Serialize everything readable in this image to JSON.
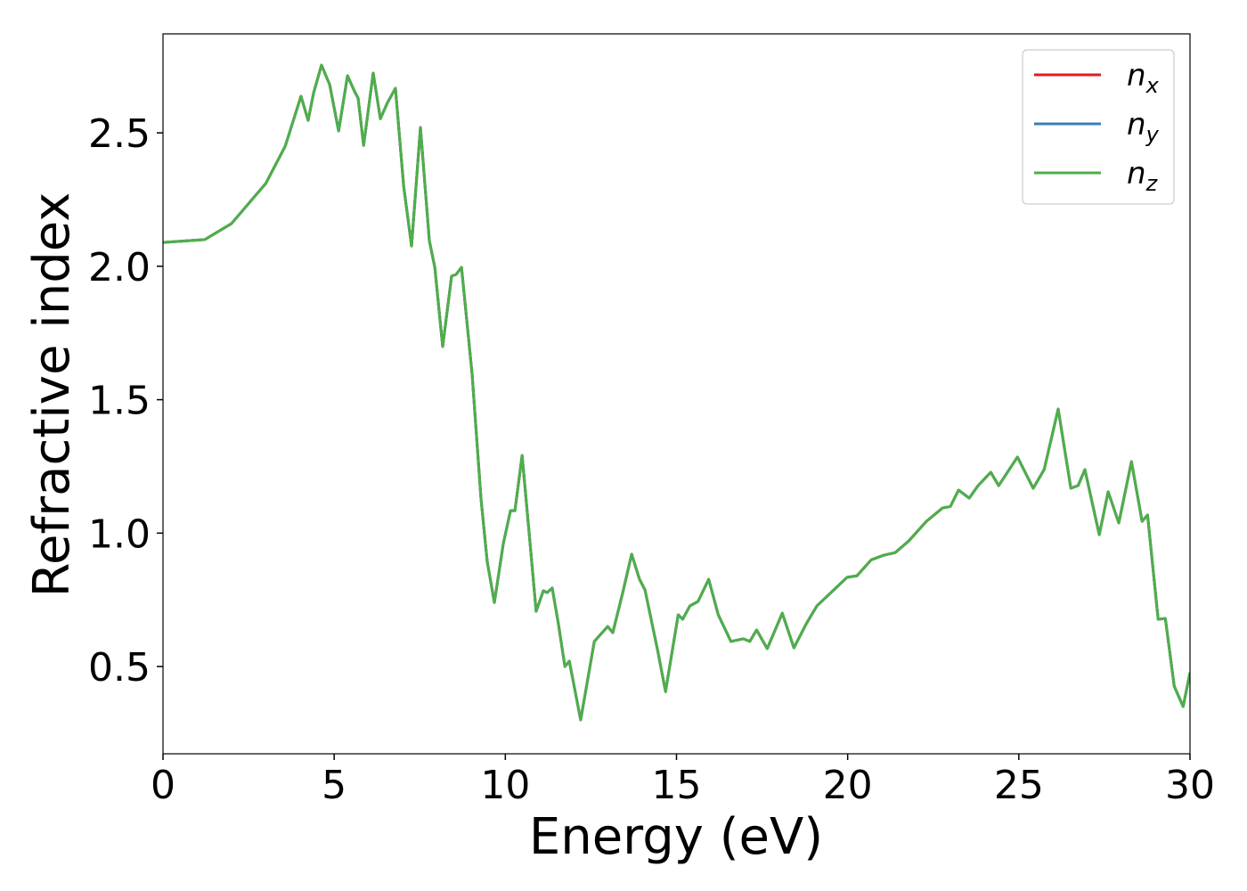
{
  "chart_data": {
    "type": "line",
    "xlabel": "Energy (eV)",
    "ylabel": "Refractive index",
    "x": [
      0,
      1.22,
      2.0,
      3.0,
      3.57,
      4.03,
      4.24,
      4.4,
      4.63,
      4.87,
      5.13,
      5.39,
      5.6,
      5.7,
      5.86,
      6.14,
      6.35,
      6.56,
      6.79,
      7.03,
      7.26,
      7.52,
      7.78,
      7.94,
      8.17,
      8.43,
      8.56,
      8.72,
      9.03,
      9.29,
      9.47,
      9.68,
      9.94,
      10.15,
      10.28,
      10.49,
      10.7,
      10.9,
      11.11,
      11.22,
      11.37,
      11.55,
      11.74,
      11.87,
      12.2,
      12.6,
      12.99,
      13.14,
      13.43,
      13.69,
      13.92,
      14.08,
      14.45,
      14.68,
      15.05,
      15.18,
      15.39,
      15.63,
      15.94,
      16.22,
      16.59,
      16.95,
      17.14,
      17.34,
      17.65,
      18.09,
      18.43,
      18.79,
      19.1,
      19.57,
      19.98,
      20.27,
      20.69,
      21.05,
      21.39,
      21.78,
      22.3,
      22.77,
      23.0,
      23.24,
      23.55,
      23.81,
      24.18,
      24.41,
      24.96,
      25.42,
      25.74,
      26.15,
      26.52,
      26.73,
      26.93,
      27.35,
      27.61,
      27.92,
      28.29,
      28.6,
      28.76,
      29.07,
      29.28,
      29.54,
      29.8,
      30.0
    ],
    "series": [
      {
        "name": "nx",
        "color": "#e41a1c",
        "values": [
          2.089,
          2.1,
          2.16,
          2.31,
          2.45,
          2.637,
          2.547,
          2.65,
          2.754,
          2.68,
          2.507,
          2.714,
          2.654,
          2.63,
          2.453,
          2.724,
          2.553,
          2.614,
          2.667,
          2.3,
          2.076,
          2.52,
          2.096,
          1.996,
          1.699,
          1.963,
          1.969,
          1.996,
          1.595,
          1.128,
          0.894,
          0.74,
          0.96,
          1.084,
          1.084,
          1.291,
          0.994,
          0.707,
          0.784,
          0.777,
          0.794,
          0.66,
          0.5,
          0.52,
          0.3,
          0.594,
          0.65,
          0.627,
          0.777,
          0.921,
          0.827,
          0.787,
          0.56,
          0.406,
          0.694,
          0.677,
          0.727,
          0.744,
          0.827,
          0.694,
          0.594,
          0.604,
          0.594,
          0.637,
          0.567,
          0.7,
          0.57,
          0.66,
          0.727,
          0.784,
          0.834,
          0.84,
          0.9,
          0.917,
          0.927,
          0.97,
          1.044,
          1.094,
          1.1,
          1.161,
          1.131,
          1.178,
          1.228,
          1.178,
          1.285,
          1.168,
          1.238,
          1.465,
          1.168,
          1.178,
          1.238,
          0.994,
          1.155,
          1.038,
          1.268,
          1.044,
          1.068,
          0.677,
          0.68,
          0.426,
          0.35,
          0.477
        ]
      },
      {
        "name": "ny",
        "color": "#377eb8",
        "values": [
          2.089,
          2.1,
          2.16,
          2.31,
          2.45,
          2.637,
          2.547,
          2.65,
          2.754,
          2.68,
          2.507,
          2.714,
          2.654,
          2.63,
          2.453,
          2.724,
          2.553,
          2.614,
          2.667,
          2.3,
          2.076,
          2.52,
          2.096,
          1.996,
          1.699,
          1.963,
          1.969,
          1.996,
          1.595,
          1.128,
          0.894,
          0.74,
          0.96,
          1.084,
          1.084,
          1.291,
          0.994,
          0.707,
          0.784,
          0.777,
          0.794,
          0.66,
          0.5,
          0.52,
          0.3,
          0.594,
          0.65,
          0.627,
          0.777,
          0.921,
          0.827,
          0.787,
          0.56,
          0.406,
          0.694,
          0.677,
          0.727,
          0.744,
          0.827,
          0.694,
          0.594,
          0.604,
          0.594,
          0.637,
          0.567,
          0.7,
          0.57,
          0.66,
          0.727,
          0.784,
          0.834,
          0.84,
          0.9,
          0.917,
          0.927,
          0.97,
          1.044,
          1.094,
          1.1,
          1.161,
          1.131,
          1.178,
          1.228,
          1.178,
          1.285,
          1.168,
          1.238,
          1.465,
          1.168,
          1.178,
          1.238,
          0.994,
          1.155,
          1.038,
          1.268,
          1.044,
          1.068,
          0.677,
          0.68,
          0.426,
          0.35,
          0.477
        ]
      },
      {
        "name": "nz",
        "color": "#4daf4a",
        "values": [
          2.089,
          2.1,
          2.16,
          2.31,
          2.45,
          2.637,
          2.547,
          2.65,
          2.754,
          2.68,
          2.507,
          2.714,
          2.654,
          2.63,
          2.453,
          2.724,
          2.553,
          2.614,
          2.667,
          2.3,
          2.076,
          2.52,
          2.096,
          1.996,
          1.699,
          1.963,
          1.969,
          1.996,
          1.595,
          1.128,
          0.894,
          0.74,
          0.96,
          1.084,
          1.084,
          1.291,
          0.994,
          0.707,
          0.784,
          0.777,
          0.794,
          0.66,
          0.5,
          0.52,
          0.3,
          0.594,
          0.65,
          0.627,
          0.777,
          0.921,
          0.827,
          0.787,
          0.56,
          0.406,
          0.694,
          0.677,
          0.727,
          0.744,
          0.827,
          0.694,
          0.594,
          0.604,
          0.594,
          0.637,
          0.567,
          0.7,
          0.57,
          0.66,
          0.727,
          0.784,
          0.834,
          0.84,
          0.9,
          0.917,
          0.927,
          0.97,
          1.044,
          1.094,
          1.1,
          1.161,
          1.131,
          1.178,
          1.228,
          1.178,
          1.285,
          1.168,
          1.238,
          1.465,
          1.168,
          1.178,
          1.238,
          0.994,
          1.155,
          1.038,
          1.268,
          1.044,
          1.068,
          0.677,
          0.68,
          0.426,
          0.35,
          0.477
        ]
      }
    ],
    "xlim": [
      0,
      30
    ],
    "xticks": [
      0,
      5,
      10,
      15,
      20,
      25,
      30
    ],
    "ylim": [
      0.173,
      2.871
    ],
    "yticks": [
      0.5,
      {
        "value": 1.0,
        "label": "1.0"
      },
      1.5,
      {
        "value": 2.0,
        "label": "2.0"
      },
      2.5
    ],
    "legend": "upper-right",
    "grid": false
  }
}
